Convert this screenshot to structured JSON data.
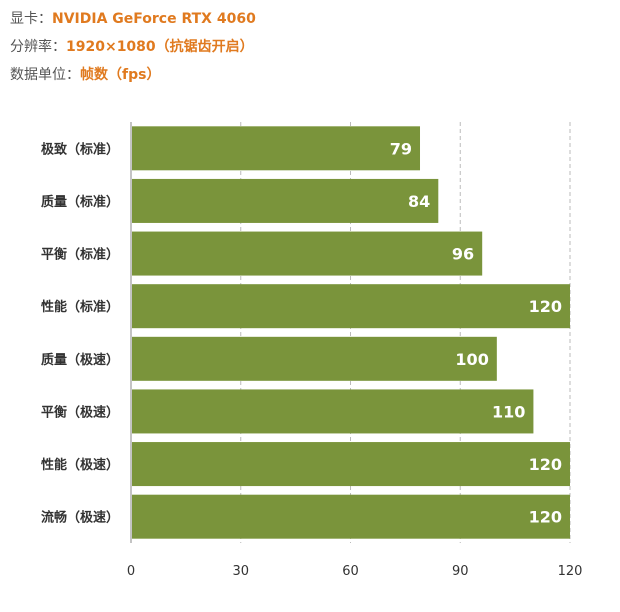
{
  "info": [
    {
      "label": "显卡：",
      "value": "NVIDIA GeForce RTX 4060"
    },
    {
      "label": "分辨率：",
      "value": "1920×1080（抗锯齿开启）"
    },
    {
      "label": "数据单位：",
      "value": "帧数（fps）"
    }
  ],
  "colors": {
    "bar": "#7a943b",
    "accent": "#e07a1f",
    "grid": "#bbbbbb"
  },
  "chart_data": {
    "type": "bar",
    "orientation": "horizontal",
    "categories": [
      "极致（标准）",
      "质量（标准）",
      "平衡（标准）",
      "性能（标准）",
      "质量（极速）",
      "平衡（极速）",
      "性能（极速）",
      "流畅（极速）"
    ],
    "values": [
      79,
      84,
      96,
      120,
      100,
      110,
      120,
      120
    ],
    "xlim": [
      0,
      120
    ],
    "xticks": [
      0,
      30,
      60,
      90,
      120
    ],
    "grid": "vertical-dashed",
    "data_labels": true
  }
}
